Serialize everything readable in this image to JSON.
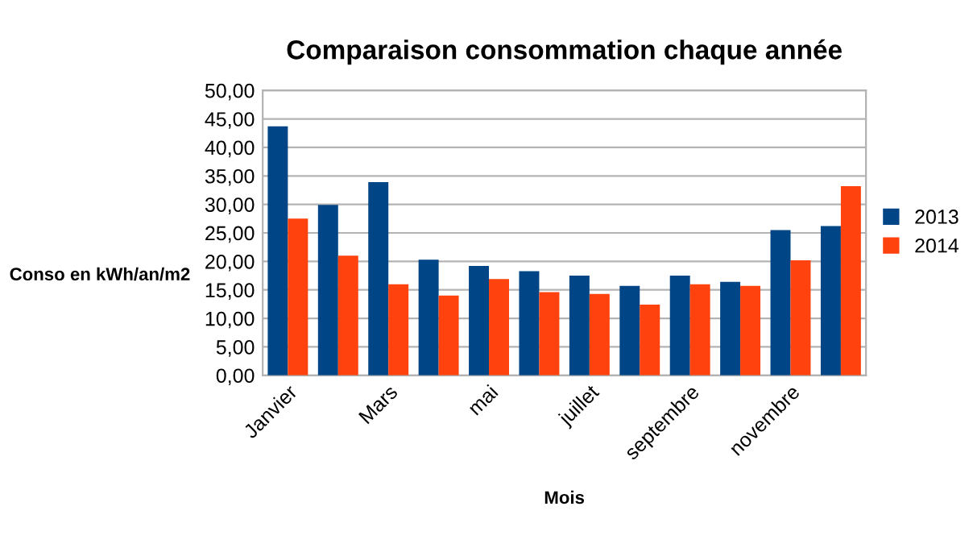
{
  "chart_data": {
    "type": "bar",
    "title": "Comparaison consommation chaque année",
    "xlabel": "Mois",
    "ylabel": "Conso en kWh/an/m2",
    "categories": [
      "Janvier",
      null,
      "Mars",
      null,
      "mai",
      null,
      "juillet",
      null,
      "septembre",
      null,
      "novembre",
      null
    ],
    "series": [
      {
        "name": "2013",
        "color": "#004586",
        "values": [
          43.7,
          29.9,
          33.9,
          20.3,
          19.2,
          18.3,
          17.5,
          15.7,
          17.5,
          16.4,
          25.5,
          26.2
        ]
      },
      {
        "name": "2014",
        "color": "#ff420e",
        "values": [
          27.5,
          21.0,
          16.0,
          14.0,
          16.9,
          14.6,
          14.3,
          12.4,
          16.0,
          15.7,
          20.2,
          33.2
        ]
      }
    ],
    "ylim": [
      0,
      50
    ],
    "yticks": [
      {
        "value": 0,
        "label": "0,00"
      },
      {
        "value": 5,
        "label": "5,00"
      },
      {
        "value": 10,
        "label": "10,00"
      },
      {
        "value": 15,
        "label": "15,00"
      },
      {
        "value": 20,
        "label": "20,00"
      },
      {
        "value": 25,
        "label": "25,00"
      },
      {
        "value": 30,
        "label": "30,00"
      },
      {
        "value": 35,
        "label": "35,00"
      },
      {
        "value": 40,
        "label": "40,00"
      },
      {
        "value": 45,
        "label": "45,00"
      },
      {
        "value": 50,
        "label": "50,00"
      }
    ],
    "grid": "y",
    "legend": "right"
  }
}
